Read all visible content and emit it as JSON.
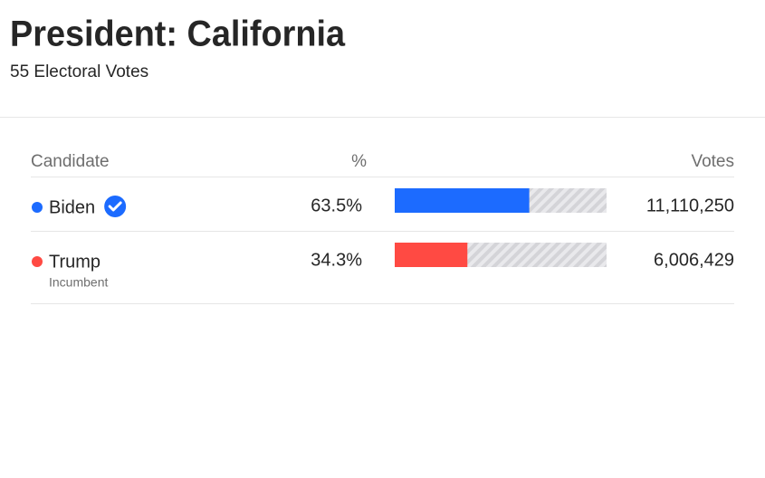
{
  "header": {
    "title": "President: California",
    "subtitle": "55 Electoral Votes"
  },
  "table": {
    "columns": [
      "Candidate",
      "%",
      "Votes"
    ],
    "xlim": [
      0,
      100
    ],
    "rows": [
      {
        "name": "Biden",
        "color": "#1c6bff",
        "winner": true,
        "percent": {
          "value": 63.5,
          "label": "63.5%"
        },
        "votes": "11,110,250"
      },
      {
        "name": "Trump",
        "color": "#ff4a43",
        "note": "Incumbent",
        "percent": {
          "value": 34.3,
          "label": "34.3%"
        },
        "votes": "6,006,429"
      }
    ]
  }
}
